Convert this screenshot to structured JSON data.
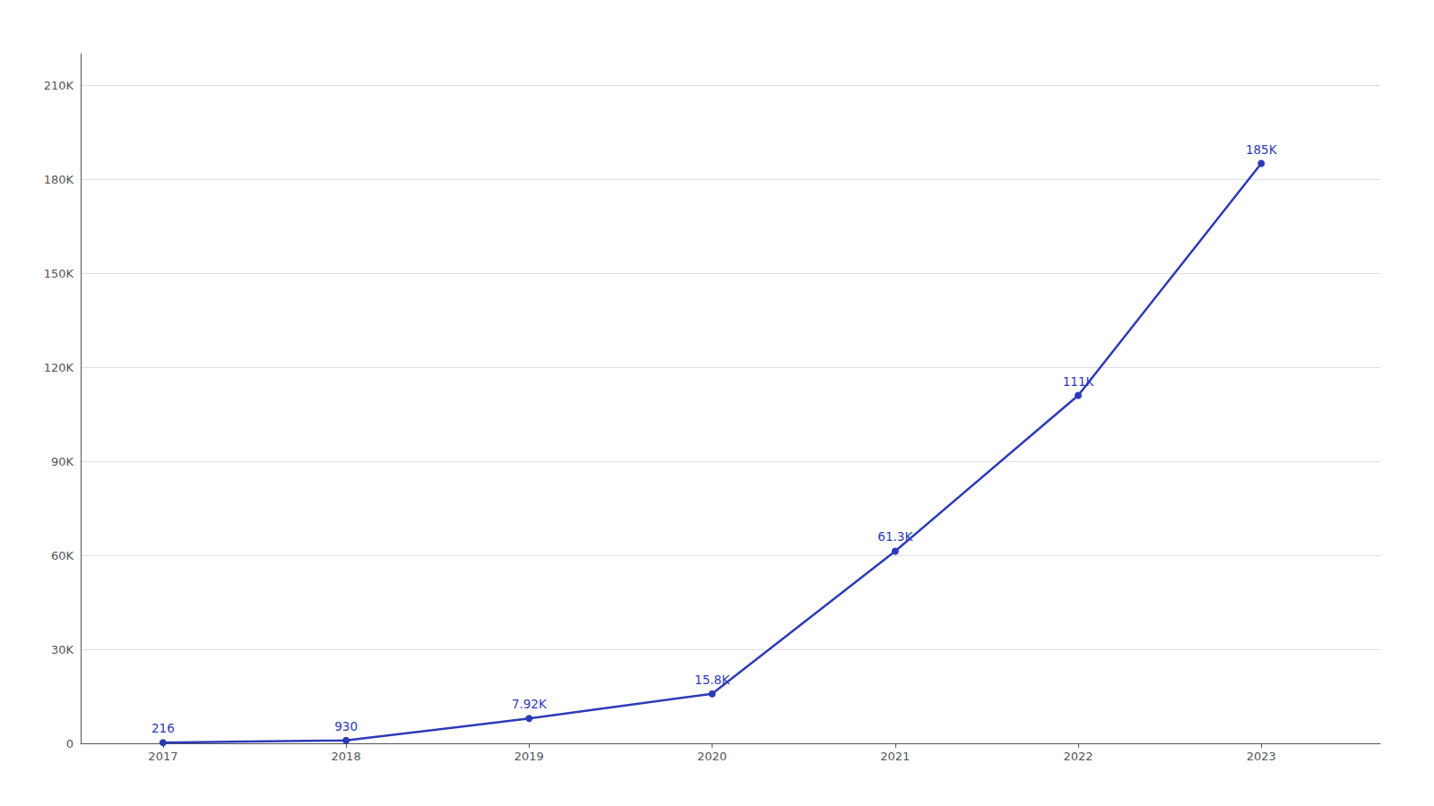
{
  "chart_data": {
    "type": "line",
    "x": [
      2017,
      2018,
      2019,
      2020,
      2021,
      2022,
      2023
    ],
    "values": [
      216,
      930,
      7920,
      15800,
      61300,
      111000,
      185000
    ],
    "value_labels": [
      "216",
      "930",
      "7.92K",
      "15.8K",
      "61.3K",
      "111K",
      "185K"
    ],
    "color": "#2d3ab8",
    "marker": "circle",
    "xlim": [
      2016.55,
      2023.65
    ],
    "xticks": [
      2017,
      2018,
      2019,
      2020,
      2021,
      2022,
      2023
    ],
    "ylim": [
      0,
      220000
    ],
    "yticks": [
      0,
      {
        "value": 30000,
        "label": "30K"
      },
      {
        "value": 60000,
        "label": "60K"
      },
      {
        "value": 90000,
        "label": "90K"
      },
      {
        "value": 120000,
        "label": "120K"
      },
      {
        "value": 150000,
        "label": "150K"
      },
      {
        "value": 180000,
        "label": "180K"
      },
      {
        "value": 210000,
        "label": "210K"
      }
    ],
    "grid": true,
    "data_labels": true
  }
}
